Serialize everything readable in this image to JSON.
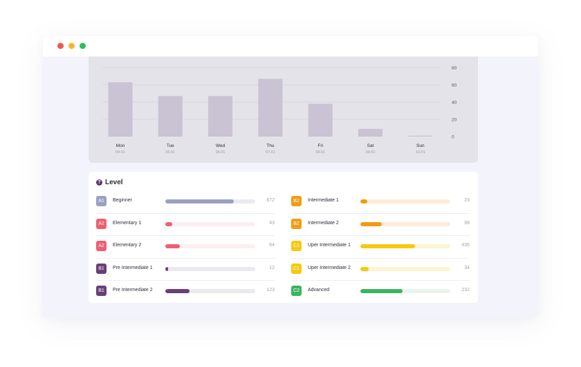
{
  "window": {
    "controls": [
      "close",
      "minimize",
      "maximize"
    ]
  },
  "chart_data": {
    "type": "bar",
    "categories": [
      "Mon",
      "Tue",
      "Wed",
      "Thu",
      "Fri",
      "Sat",
      "Sun"
    ],
    "dates": [
      "04.01",
      "05.01",
      "06.01",
      "07.01",
      "08.01",
      "09.01",
      "10.01"
    ],
    "values": [
      63,
      47,
      47,
      67,
      38,
      9,
      1
    ],
    "ylim": [
      0,
      80
    ],
    "yticks": [
      80,
      60,
      40,
      20,
      0
    ],
    "grid": true,
    "yaxis_position": "right",
    "bar_color": "#c9c3d3"
  },
  "level": {
    "title": "Level",
    "left": [
      {
        "code": "A1",
        "label": "Beginner",
        "count": "672",
        "fraction": 0.76,
        "color": "#9ba0c2",
        "track": "#eaeaf2"
      },
      {
        "code": "A2",
        "label": "Elementary 1",
        "count": "43",
        "fraction": 0.08,
        "color": "#ee5f72",
        "track": "#fdeef0"
      },
      {
        "code": "A2",
        "label": "Elementary 2",
        "count": "64",
        "fraction": 0.16,
        "color": "#ee5f72",
        "track": "#fdeef0"
      },
      {
        "code": "B1",
        "label": "Pre Intermediate 1",
        "count": "12",
        "fraction": 0.03,
        "color": "#6a3f78",
        "track": "#ebe8ee"
      },
      {
        "code": "B1",
        "label": "Pre Intermediate 2",
        "count": "123",
        "fraction": 0.27,
        "color": "#6a3f78",
        "track": "#ebe8ee"
      }
    ],
    "right": [
      {
        "code": "B2",
        "label": "Intermediate 1",
        "count": "23",
        "fraction": 0.08,
        "color": "#f29b12",
        "track": "#fdecd6"
      },
      {
        "code": "B2",
        "label": "Intermediate 2",
        "count": "98",
        "fraction": 0.24,
        "color": "#f29b12",
        "track": "#fdecd6"
      },
      {
        "code": "C1",
        "label": "Uper Intermediate 1",
        "count": "435",
        "fraction": 0.61,
        "color": "#f6c912",
        "track": "#fdf5d2"
      },
      {
        "code": "C1",
        "label": "Uper Intermediate 2",
        "count": "34",
        "fraction": 0.09,
        "color": "#f6c912",
        "track": "#fdf5d2"
      },
      {
        "code": "C2",
        "label": "Advanced",
        "count": "232",
        "fraction": 0.47,
        "color": "#3cb45f",
        "track": "#e6f5ea"
      }
    ]
  }
}
